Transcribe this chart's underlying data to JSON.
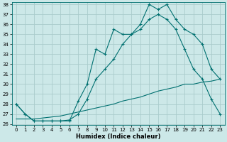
{
  "xlabel": "Humidex (Indice chaleur)",
  "bg_color": "#cce8e8",
  "grid_color": "#aacccc",
  "line_color": "#007070",
  "line1_x": [
    0,
    1,
    2,
    3,
    4,
    5,
    6,
    7,
    8,
    9,
    10,
    11,
    12,
    13,
    14,
    15,
    16,
    17,
    18,
    19,
    20,
    21,
    22,
    23
  ],
  "line1_y": [
    28.0,
    27.0,
    26.3,
    26.3,
    26.3,
    26.3,
    26.3,
    28.3,
    30.0,
    33.5,
    33.0,
    35.5,
    35.0,
    35.0,
    36.0,
    38.0,
    37.5,
    38.0,
    36.5,
    35.5,
    35.0,
    34.0,
    31.5,
    30.5
  ],
  "line2_x": [
    0,
    1,
    2,
    3,
    4,
    5,
    6,
    7,
    8,
    9,
    10,
    11,
    12,
    13,
    14,
    15,
    16,
    17,
    18,
    19,
    20,
    21,
    22,
    23
  ],
  "line2_y": [
    28.0,
    27.0,
    26.3,
    26.3,
    26.3,
    26.3,
    26.4,
    27.0,
    28.5,
    30.5,
    31.5,
    32.5,
    34.0,
    35.0,
    35.5,
    36.5,
    37.0,
    36.5,
    35.5,
    33.5,
    31.5,
    30.5,
    28.5,
    27.0
  ],
  "line3_x": [
    0,
    1,
    2,
    3,
    4,
    5,
    6,
    7,
    8,
    9,
    10,
    11,
    12,
    13,
    14,
    15,
    16,
    17,
    18,
    19,
    20,
    21,
    22,
    23
  ],
  "line3_y": [
    26.5,
    26.5,
    26.5,
    26.6,
    26.7,
    26.8,
    27.0,
    27.2,
    27.4,
    27.6,
    27.8,
    28.0,
    28.3,
    28.5,
    28.7,
    29.0,
    29.3,
    29.5,
    29.7,
    30.0,
    30.0,
    30.2,
    30.3,
    30.5
  ],
  "ylim": [
    26,
    38
  ],
  "xlim": [
    -0.5,
    23.5
  ],
  "yticks": [
    26,
    27,
    28,
    29,
    30,
    31,
    32,
    33,
    34,
    35,
    36,
    37,
    38
  ],
  "xticks": [
    0,
    1,
    2,
    3,
    4,
    5,
    6,
    7,
    8,
    9,
    10,
    11,
    12,
    13,
    14,
    15,
    16,
    17,
    18,
    19,
    20,
    21,
    22,
    23
  ],
  "tick_fontsize": 5.0,
  "xlabel_fontsize": 6.0
}
